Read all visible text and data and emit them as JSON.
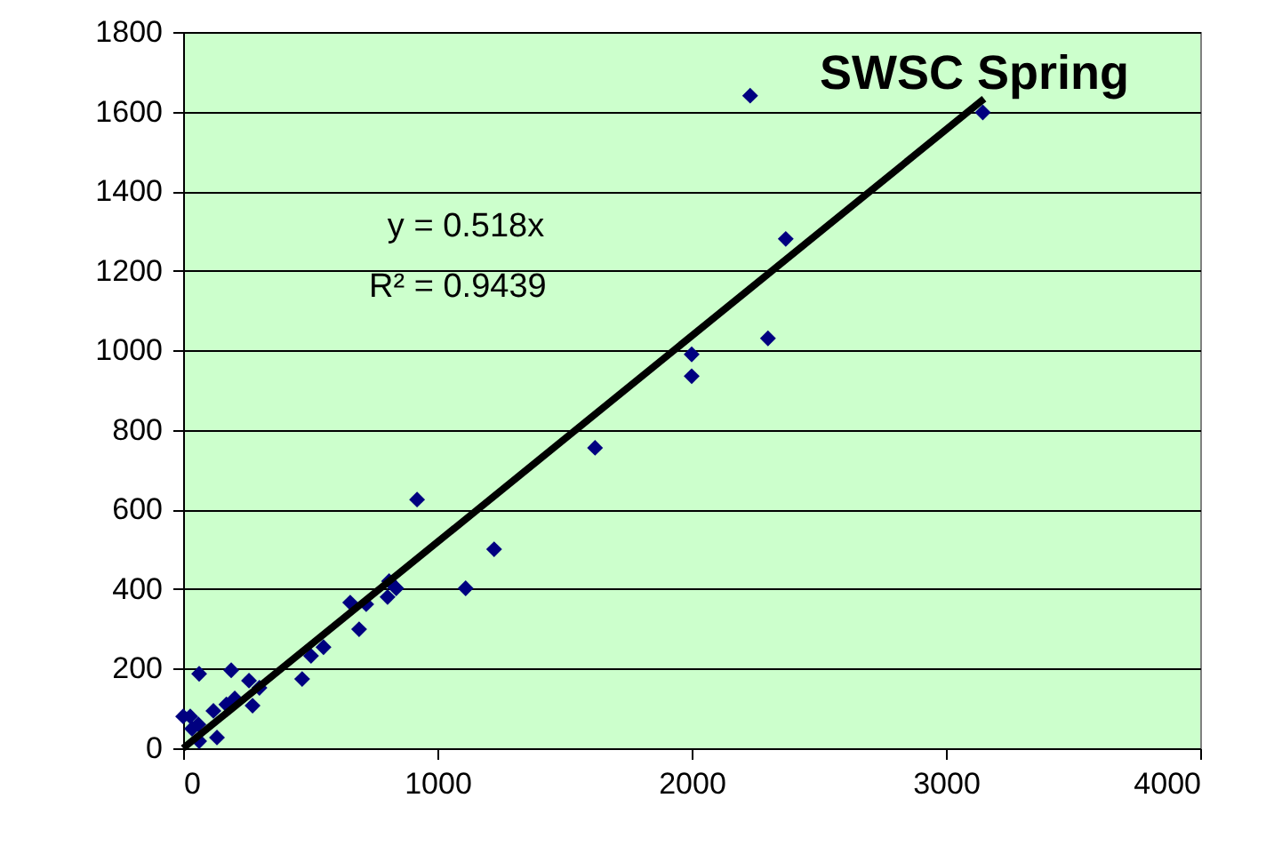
{
  "chart_data": {
    "type": "scatter",
    "title": "SWSC Spring",
    "annotations": [
      "y = 0.518x",
      "R² = 0.9439"
    ],
    "xlim": [
      0,
      4000
    ],
    "xticks": [
      0,
      1000,
      2000,
      3000,
      4000
    ],
    "ylim": [
      0,
      1800
    ],
    "yticks": [
      0,
      200,
      400,
      600,
      800,
      1000,
      1200,
      1400,
      1600,
      1800
    ],
    "grid": "y",
    "series": [
      {
        "marker": "diamond",
        "color": "#000080",
        "x": [
          3145,
          2230,
          2370,
          2300,
          2000,
          2000,
          1620,
          920,
          1223,
          1111,
          838,
          810,
          804,
          657,
          720,
          692,
          552,
          503,
          468,
          300,
          259,
          273,
          189,
          63,
          203,
          28,
          119,
          133,
          63,
          35,
          0,
          60,
          170
        ],
        "values": [
          1598,
          1640,
          1280,
          1030,
          990,
          935,
          755,
          625,
          500,
          402,
          402,
          420,
          380,
          366,
          362,
          299,
          254,
          232,
          174,
          152,
          170,
          107,
          196,
          187,
          125,
          80,
          94,
          27,
          18,
          49,
          80,
          60,
          110
        ]
      },
      {
        "type": "line",
        "color": "#000000",
        "x": [
          0,
          3150
        ],
        "values": [
          0,
          1632
        ]
      }
    ]
  }
}
